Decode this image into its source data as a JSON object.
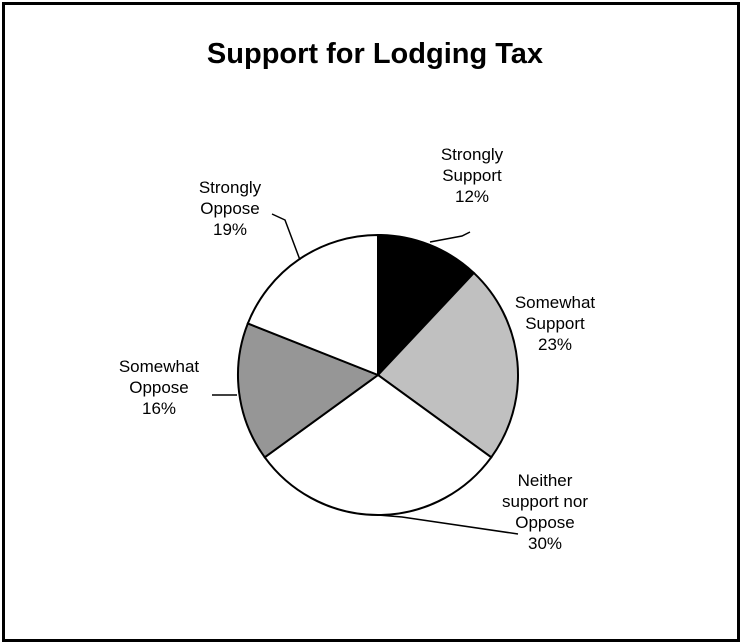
{
  "chart_data": {
    "type": "pie",
    "title": "Support for Lodging Tax",
    "slices": [
      {
        "name": "Strongly Support",
        "label_lines": [
          "Strongly",
          "Support",
          "12%"
        ],
        "value": 12,
        "color": "#000000"
      },
      {
        "name": "Somewhat Support",
        "label_lines": [
          "Somewhat",
          "Support",
          "23%"
        ],
        "value": 23,
        "color": "#c0c0c0"
      },
      {
        "name": "Neither support nor Oppose",
        "label_lines": [
          "Neither",
          "support nor",
          "Oppose",
          "30%"
        ],
        "value": 30,
        "color": "#ffffff"
      },
      {
        "name": "Somewhat Oppose",
        "label_lines": [
          "Somewhat",
          "Oppose",
          "16%"
        ],
        "value": 16,
        "color": "#969696"
      },
      {
        "name": "Strongly Oppose",
        "label_lines": [
          "Strongly",
          "Oppose",
          "19%"
        ],
        "value": 19,
        "color": "#ffffff"
      }
    ],
    "start_angle": "12 o'clock",
    "direction": "clockwise",
    "legend": "none"
  }
}
